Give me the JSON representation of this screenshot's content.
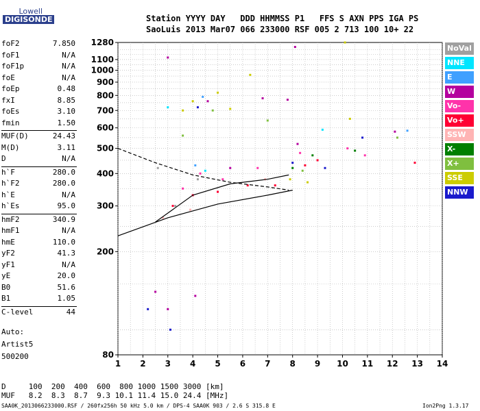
{
  "logo": {
    "line1": "Lowell",
    "line2": "DIGISONDE"
  },
  "header": {
    "labels": "Station YYYY DAY   DDD HHMMSS P1   FFS S AXN PPS IGA PS",
    "values": "SaoLuis 2013 Mar07 066 233000 RSF 005 2 713 100 10+ 22"
  },
  "params": [
    {
      "name": "foF2",
      "value": "7.850"
    },
    {
      "name": "foF1",
      "value": "N/A"
    },
    {
      "name": "foF1p",
      "value": "N/A"
    },
    {
      "name": "foE",
      "value": "N/A"
    },
    {
      "name": "foEp",
      "value": "0.48"
    },
    {
      "name": "fxI",
      "value": "8.85"
    },
    {
      "name": "foEs",
      "value": "3.10"
    },
    {
      "name": "fmin",
      "value": "1.50"
    },
    {
      "name": "MUF(D)",
      "value": "24.43"
    },
    {
      "name": "M(D)",
      "value": "3.11"
    },
    {
      "name": "D",
      "value": "N/A"
    },
    {
      "name": "h`F",
      "value": "280.0"
    },
    {
      "name": "h`F2",
      "value": "280.0"
    },
    {
      "name": "h`E",
      "value": "N/A"
    },
    {
      "name": "h`Es",
      "value": "95.0"
    },
    {
      "name": "hmF2",
      "value": "340.9"
    },
    {
      "name": "hmF1",
      "value": "N/A"
    },
    {
      "name": "hmE",
      "value": "110.0"
    },
    {
      "name": "yF2",
      "value": "41.3"
    },
    {
      "name": "yF1",
      "value": "N/A"
    },
    {
      "name": "yE",
      "value": "20.0"
    },
    {
      "name": "B0",
      "value": "51.6"
    },
    {
      "name": "B1",
      "value": "1.05"
    },
    {
      "name": "C-level",
      "value": "44"
    }
  ],
  "artist": {
    "auto": "Auto:",
    "name": "Artist5",
    "version": "500200"
  },
  "muf_table": {
    "d_row": "D     100  200  400  600  800 1000 1500 3000 [km]",
    "muf_row": "MUF   8.2  8.3  8.7  9.3 10.1 11.4 15.0 24.4 [MHz]"
  },
  "footer": {
    "file": "SAA0K_2013066233000.RSF / 260fx256h 50 kHz 5.0 km / DPS-4 SAA0K 903 / 2.6 S 315.8 E",
    "version": "Ion2Png 1.3.17"
  },
  "legend": [
    {
      "label": "NoVal",
      "color": "#a0a0a0"
    },
    {
      "label": "NNE",
      "color": "#00e5ff"
    },
    {
      "label": "E",
      "color": "#3fa0ff"
    },
    {
      "label": "W",
      "color": "#b4009e"
    },
    {
      "label": "Vo-",
      "color": "#ff33aa"
    },
    {
      "label": "Vo+",
      "color": "#ff0033"
    },
    {
      "label": "SSW",
      "color": "#ffb4b4"
    },
    {
      "label": "X-",
      "color": "#007f00"
    },
    {
      "label": "X+",
      "color": "#7fbf3f"
    },
    {
      "label": "SSE",
      "color": "#cccc00"
    },
    {
      "label": "NNW",
      "color": "#1a1acc"
    }
  ],
  "chart_data": {
    "type": "scatter",
    "xlim": [
      1,
      14
    ],
    "ylim": [
      80,
      1280
    ],
    "yscale": "log",
    "x_ticks": [
      1,
      2,
      3,
      4,
      5,
      6,
      7,
      8,
      9,
      10,
      11,
      12,
      13,
      14
    ],
    "y_ticks": [
      80,
      200,
      300,
      400,
      500,
      600,
      700,
      800,
      900,
      1000,
      1100,
      1280
    ],
    "grid": true,
    "legend_position": "right",
    "series": [
      {
        "name": "NoVal",
        "color": "#a0a0a0",
        "points": [
          [
            2.6,
            420
          ],
          [
            3.3,
            300
          ],
          [
            4.2,
            380
          ]
        ]
      },
      {
        "name": "NNE",
        "color": "#00e5ff",
        "points": [
          [
            4.5,
            410
          ],
          [
            3.0,
            720
          ],
          [
            9.2,
            590
          ]
        ]
      },
      {
        "name": "E",
        "color": "#3fa0ff",
        "points": [
          [
            4.1,
            430
          ],
          [
            4.4,
            790
          ],
          [
            12.6,
            585
          ]
        ]
      },
      {
        "name": "W",
        "color": "#b4009e",
        "points": [
          [
            2.5,
            140
          ],
          [
            3.0,
            120
          ],
          [
            4.1,
            135
          ],
          [
            4.6,
            760
          ],
          [
            6.8,
            780
          ],
          [
            7.8,
            770
          ],
          [
            8.1,
            1230
          ],
          [
            3.0,
            1120
          ],
          [
            8.2,
            520
          ],
          [
            5.5,
            420
          ],
          [
            12.1,
            580
          ]
        ]
      },
      {
        "name": "Vo-",
        "color": "#ff33aa",
        "points": [
          [
            3.6,
            350
          ],
          [
            4.3,
            400
          ],
          [
            5.2,
            380
          ],
          [
            6.6,
            420
          ],
          [
            8.3,
            480
          ],
          [
            10.2,
            500
          ],
          [
            10.9,
            470
          ]
        ]
      },
      {
        "name": "Vo+",
        "color": "#ff0033",
        "points": [
          [
            3.2,
            300
          ],
          [
            4.0,
            330
          ],
          [
            5.0,
            340
          ],
          [
            6.2,
            360
          ],
          [
            7.3,
            360
          ],
          [
            8.5,
            430
          ],
          [
            9.0,
            450
          ],
          [
            12.9,
            440
          ]
        ]
      },
      {
        "name": "SSW",
        "color": "#ffb4b4",
        "points": [
          [
            2.8,
            270
          ],
          [
            3.9,
            290
          ],
          [
            6.9,
            380
          ]
        ]
      },
      {
        "name": "X-",
        "color": "#007f00",
        "points": [
          [
            8.0,
            420
          ],
          [
            8.8,
            470
          ],
          [
            10.5,
            490
          ]
        ]
      },
      {
        "name": "X+",
        "color": "#7fbf3f",
        "points": [
          [
            3.6,
            560
          ],
          [
            4.8,
            700
          ],
          [
            7.0,
            640
          ],
          [
            8.4,
            410
          ],
          [
            12.2,
            550
          ]
        ]
      },
      {
        "name": "SSE",
        "color": "#cccc00",
        "points": [
          [
            3.6,
            700
          ],
          [
            4.0,
            760
          ],
          [
            5.5,
            710
          ],
          [
            6.3,
            960
          ],
          [
            7.9,
            380
          ],
          [
            8.6,
            370
          ],
          [
            10.3,
            650
          ],
          [
            10.1,
            1280
          ],
          [
            5.0,
            820
          ]
        ]
      },
      {
        "name": "NNW",
        "color": "#1a1acc",
        "points": [
          [
            2.2,
            120
          ],
          [
            3.1,
            100
          ],
          [
            4.2,
            720
          ],
          [
            8.0,
            440
          ],
          [
            9.3,
            420
          ],
          [
            10.8,
            550
          ]
        ]
      }
    ],
    "traces": [
      {
        "style": "solid",
        "points": [
          [
            1.0,
            230
          ],
          [
            3.0,
            270
          ],
          [
            5.0,
            305
          ],
          [
            7.0,
            330
          ],
          [
            8.0,
            345
          ]
        ]
      },
      {
        "style": "solid",
        "points": [
          [
            2.5,
            260
          ],
          [
            4.0,
            330
          ],
          [
            5.5,
            365
          ],
          [
            7.0,
            380
          ],
          [
            7.85,
            395
          ]
        ]
      },
      {
        "style": "dashed",
        "points": [
          [
            1.0,
            500
          ],
          [
            2.5,
            440
          ],
          [
            4.0,
            395
          ],
          [
            5.5,
            370
          ],
          [
            7.0,
            355
          ],
          [
            7.85,
            345
          ]
        ]
      }
    ]
  }
}
